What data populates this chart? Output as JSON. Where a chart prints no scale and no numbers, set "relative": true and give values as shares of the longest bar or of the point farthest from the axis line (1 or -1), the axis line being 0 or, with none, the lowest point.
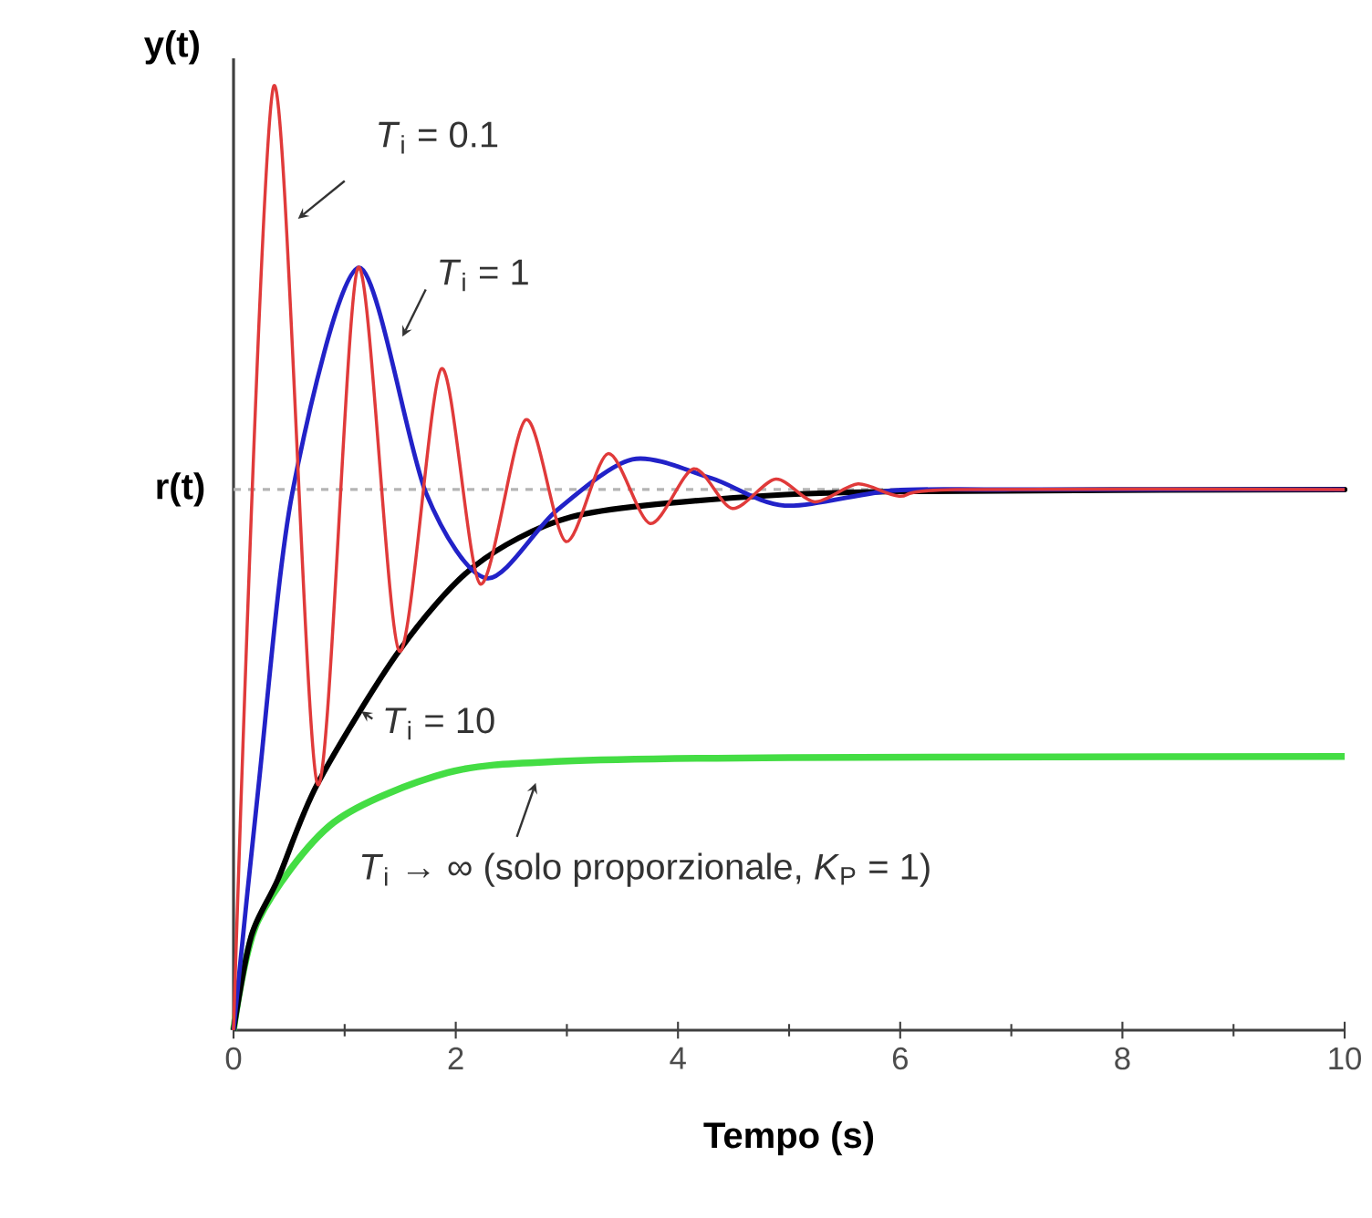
{
  "chart_data": {
    "type": "line",
    "relative": true,
    "xlabel": "Tempo (s)",
    "ylabel": "y(t)",
    "xlim": [
      0,
      10
    ],
    "xticks": [
      0,
      2,
      4,
      6,
      8,
      10
    ],
    "marker": "none",
    "line_style": "solid",
    "grid": false,
    "ref_lines": [
      {
        "axis": "y",
        "value": 0.573,
        "label": "r(t)",
        "color": "#b4b4b4",
        "line_style": "dashed"
      }
    ],
    "series": [
      {
        "name": "*T*$_{i}$ = 0.1",
        "color": "#e03a3a",
        "x": [
          0,
          0.36,
          0.755,
          1.12,
          1.49,
          1.87,
          2.22,
          2.63,
          2.99,
          3.37,
          3.75,
          4.14,
          4.49,
          4.88,
          5.23,
          5.62,
          5.99,
          6.5,
          10
        ],
        "values": [
          0,
          1.0,
          0.261,
          0.808,
          0.402,
          0.701,
          0.473,
          0.647,
          0.518,
          0.611,
          0.537,
          0.595,
          0.553,
          0.584,
          0.56,
          0.579,
          0.566,
          0.573,
          0.573
        ]
      },
      {
        "name": "*T*$_{i}$ = 1",
        "color": "#2222c8",
        "x": [
          0,
          0.22,
          0.53,
          1.13,
          1.73,
          2.28,
          2.9,
          3.59,
          4.3,
          4.96,
          5.94,
          7,
          10
        ],
        "values": [
          0,
          0.253,
          0.57,
          0.808,
          0.57,
          0.479,
          0.55,
          0.605,
          0.585,
          0.556,
          0.572,
          0.573,
          0.573
        ]
      },
      {
        "name": "*T*$_{i}$ = 10",
        "color": "#000000",
        "x": [
          0,
          0.16,
          0.4,
          0.755,
          1.49,
          2.17,
          3.04,
          4.47,
          6,
          10
        ],
        "values": [
          0,
          0.1,
          0.16,
          0.261,
          0.402,
          0.492,
          0.544,
          0.564,
          0.571,
          0.573
        ]
      },
      {
        "name": "*T*$_{i}$ → ∞  (solo proporzionale, *K*$_{P}$ = 1)",
        "color": "#44dd44",
        "x": [
          0,
          0.22,
          0.9,
          1.93,
          2.95,
          5,
          10
        ],
        "values": [
          0,
          0.116,
          0.22,
          0.273,
          0.285,
          0.289,
          0.29
        ]
      }
    ]
  }
}
